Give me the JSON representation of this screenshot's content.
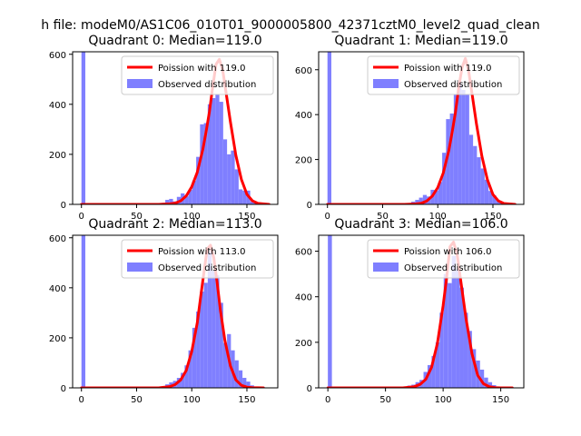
{
  "figure": {
    "suptitle": "h file: modeM0/AS1C06_010T01_9000005800_42371cztM0_level2_quad_clean"
  },
  "colors": {
    "histogram": "#7f7fff",
    "poisson_line": "#ff0000",
    "axes": "#000000",
    "background": "#ffffff"
  },
  "chart_data": [
    {
      "type": "bar",
      "title": "Quadrant 0: Median=119.0",
      "xlim": [
        -8,
        178
      ],
      "ylim": [
        0,
        610
      ],
      "xticks": [
        0,
        50,
        100,
        150
      ],
      "yticks": [
        0,
        200,
        400,
        600
      ],
      "grid": false,
      "legend_position": "top-right",
      "zero_bin": 610,
      "bin_width": 3.5,
      "series": [
        {
          "name": "Poission with 119.0",
          "kind": "line",
          "mu": 119.0,
          "x": [
            0,
            70,
            80,
            85,
            90,
            95,
            100,
            105,
            110,
            113,
            116,
            119,
            122,
            125,
            128,
            131,
            135,
            140,
            145,
            150,
            155,
            160,
            170
          ],
          "values": [
            0,
            0,
            2,
            5,
            14,
            34,
            70,
            128,
            219,
            290,
            370,
            470,
            560,
            580,
            540,
            450,
            330,
            196,
            100,
            40,
            14,
            4,
            0
          ]
        },
        {
          "name": "Observed distribution",
          "kind": "histogram",
          "x": [
            69,
            72.5,
            76,
            79.5,
            83,
            86.5,
            90,
            93.5,
            97,
            100.5,
            104,
            107.5,
            111,
            114.5,
            118,
            121.5,
            125,
            128.5,
            132,
            135.5,
            139,
            142.5,
            146,
            149.5,
            153,
            156.5,
            160,
            163.5
          ],
          "values": [
            4,
            6,
            18,
            22,
            12,
            30,
            44,
            32,
            58,
            95,
            190,
            320,
            325,
            400,
            425,
            440,
            410,
            260,
            200,
            215,
            140,
            60,
            55,
            55,
            12,
            8,
            3,
            2
          ]
        }
      ]
    },
    {
      "type": "bar",
      "title": "Quadrant 1: Median=119.0",
      "xlim": [
        -8,
        178
      ],
      "ylim": [
        0,
        680
      ],
      "xticks": [
        0,
        50,
        100,
        150
      ],
      "yticks": [
        0,
        200,
        400,
        600
      ],
      "grid": false,
      "legend_position": "top-right",
      "zero_bin": 680,
      "bin_width": 3.5,
      "series": [
        {
          "name": "Poission with 119.0",
          "kind": "line",
          "mu": 119.0,
          "x": [
            0,
            70,
            80,
            85,
            90,
            95,
            100,
            105,
            110,
            113,
            116,
            119,
            122,
            125,
            128,
            131,
            135,
            140,
            145,
            150,
            155,
            160,
            170
          ],
          "values": [
            0,
            0,
            2,
            5,
            15,
            37,
            75,
            140,
            240,
            320,
            410,
            520,
            610,
            650,
            595,
            495,
            360,
            215,
            110,
            44,
            15,
            4,
            0
          ]
        },
        {
          "name": "Observed distribution",
          "kind": "histogram",
          "x": [
            69,
            72.5,
            76,
            79.5,
            83,
            86.5,
            90,
            93.5,
            97,
            100.5,
            104,
            107.5,
            111,
            114.5,
            118,
            121.5,
            125,
            128.5,
            132,
            135.5,
            139,
            142.5,
            146,
            149.5,
            153,
            156.5,
            160,
            163.5
          ],
          "values": [
            3,
            6,
            12,
            20,
            30,
            42,
            35,
            65,
            62,
            100,
            230,
            380,
            405,
            490,
            540,
            510,
            490,
            310,
            260,
            210,
            160,
            110,
            60,
            40,
            15,
            6,
            3,
            2
          ]
        }
      ]
    },
    {
      "type": "bar",
      "title": "Quadrant 2: Median=113.0",
      "xlim": [
        -8,
        178
      ],
      "ylim": [
        0,
        610
      ],
      "xticks": [
        0,
        50,
        100,
        150
      ],
      "yticks": [
        0,
        200,
        400,
        600
      ],
      "grid": false,
      "legend_position": "top-right",
      "zero_bin": 610,
      "bin_width": 3.5,
      "series": [
        {
          "name": "Poission with 113.0",
          "kind": "line",
          "mu": 113.0,
          "x": [
            0,
            70,
            80,
            85,
            90,
            95,
            100,
            105,
            108,
            111,
            114,
            117,
            120,
            123,
            126,
            130,
            135,
            140,
            145,
            150,
            155,
            165
          ],
          "values": [
            0,
            0,
            5,
            13,
            32,
            70,
            145,
            260,
            360,
            460,
            555,
            570,
            520,
            420,
            310,
            190,
            88,
            32,
            10,
            3,
            1,
            0
          ]
        },
        {
          "name": "Observed distribution",
          "kind": "histogram",
          "x": [
            69,
            72.5,
            76,
            79.5,
            83,
            86.5,
            90,
            93.5,
            97,
            100.5,
            104,
            107.5,
            111,
            114.5,
            118,
            121.5,
            125,
            128.5,
            132,
            135.5,
            139,
            142.5,
            146,
            149.5,
            153,
            156.5,
            160,
            163.5
          ],
          "values": [
            4,
            6,
            14,
            22,
            28,
            40,
            60,
            90,
            150,
            240,
            305,
            385,
            420,
            545,
            470,
            450,
            340,
            180,
            215,
            150,
            110,
            70,
            40,
            25,
            10,
            5,
            3,
            2
          ]
        }
      ]
    },
    {
      "type": "bar",
      "title": "Quadrant 3: Median=106.0",
      "xlim": [
        -8,
        170
      ],
      "ylim": [
        0,
        670
      ],
      "xticks": [
        0,
        50,
        100,
        150
      ],
      "yticks": [
        0,
        200,
        400,
        600
      ],
      "grid": false,
      "legend_position": "top-right",
      "zero_bin": 670,
      "bin_width": 3.5,
      "series": [
        {
          "name": "Poission with 106.0",
          "kind": "line",
          "mu": 106.0,
          "x": [
            0,
            65,
            75,
            80,
            85,
            90,
            95,
            100,
            103,
            106,
            109,
            112,
            115,
            120,
            125,
            130,
            135,
            140,
            145,
            150,
            160
          ],
          "values": [
            0,
            0,
            5,
            15,
            38,
            90,
            195,
            360,
            480,
            620,
            640,
            590,
            480,
            300,
            150,
            55,
            18,
            5,
            1,
            0,
            0
          ]
        },
        {
          "name": "Observed distribution",
          "kind": "histogram",
          "x": [
            62,
            65.5,
            69,
            72.5,
            76,
            79.5,
            83,
            86.5,
            90,
            93.5,
            97,
            100.5,
            104,
            107.5,
            111,
            114.5,
            118,
            121.5,
            125,
            128.5,
            132,
            135.5,
            139,
            142.5,
            146,
            149.5,
            153
          ],
          "values": [
            4,
            6,
            10,
            14,
            25,
            35,
            70,
            100,
            140,
            200,
            330,
            500,
            460,
            580,
            520,
            440,
            330,
            250,
            170,
            120,
            80,
            45,
            25,
            12,
            6,
            3,
            2
          ]
        }
      ]
    }
  ]
}
